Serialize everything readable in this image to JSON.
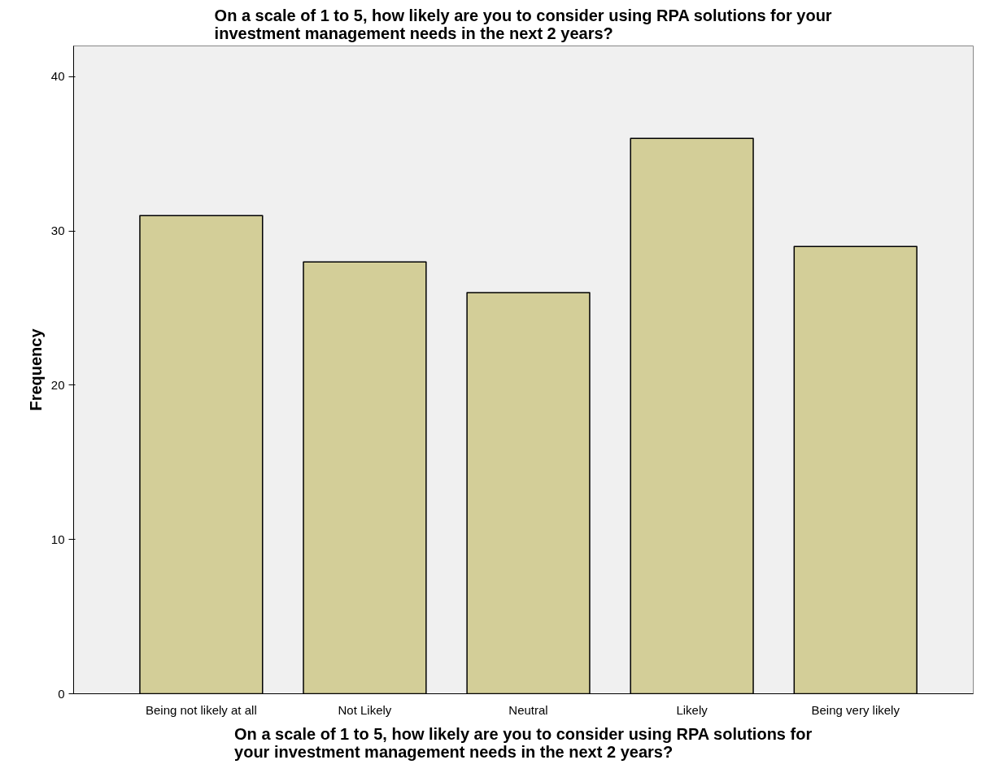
{
  "chart_data": {
    "type": "bar",
    "title": "On a scale of 1 to 5, how likely are you to consider using RPA solutions for your investment management needs in the next 2 years?",
    "xlabel": "On a scale of 1 to 5, how likely are you to consider using RPA solutions for your investment management needs in the next 2 years?",
    "ylabel": "Frequency",
    "categories": [
      "Being not likely at all",
      "Not Likely",
      "Neutral",
      "Likely",
      "Being very likely"
    ],
    "values": [
      31,
      28,
      26,
      36,
      29
    ],
    "color": "#d3ce98",
    "ylim": [
      0,
      42
    ],
    "yticks": [
      0,
      10,
      20,
      30,
      40
    ],
    "grid": false
  }
}
